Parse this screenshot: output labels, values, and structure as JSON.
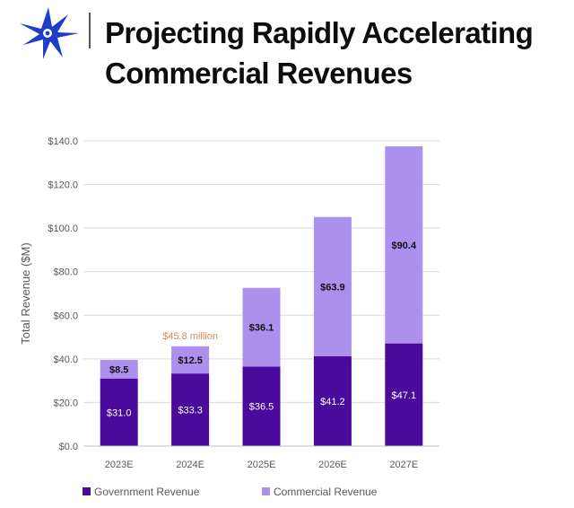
{
  "header": {
    "title_line1": "Projecting Rapidly Accelerating",
    "title_line2": "Commercial Revenues",
    "logo_icon": "compass-star-icon"
  },
  "colors": {
    "government": "#4a0a9c",
    "commercial": "#ab90ee",
    "annotation": "#d08a55",
    "grid": "#d9d9d9",
    "logo_blue": "#1e3ec8"
  },
  "chart_data": {
    "type": "bar",
    "stacked": true,
    "ylabel": "Total Revenue ($M)",
    "xlabel": "",
    "ylim": [
      0,
      140
    ],
    "yticks": [
      0,
      20,
      40,
      60,
      80,
      100,
      120,
      140
    ],
    "ytick_labels": [
      "$0.0",
      "$20.0",
      "$40.0",
      "$60.0",
      "$80.0",
      "$100.0",
      "$120.0",
      "$140.0"
    ],
    "categories": [
      "2023E",
      "2024E",
      "2025E",
      "2026E",
      "2027E"
    ],
    "series": [
      {
        "name": "Government Revenue",
        "values": [
          31.0,
          33.3,
          36.5,
          41.2,
          47.1
        ],
        "labels": [
          "$31.0",
          "$33.3",
          "$36.5",
          "$41.2",
          "$47.1"
        ]
      },
      {
        "name": "Commercial Revenue",
        "values": [
          8.5,
          12.5,
          36.1,
          63.9,
          90.4
        ],
        "labels": [
          "$8.5",
          "$12.5",
          "$36.1",
          "$63.9",
          "$90.4"
        ]
      }
    ],
    "annotation": {
      "category": "2024E",
      "text": "$45.8 million"
    },
    "legend_position": "bottom",
    "grid": true
  }
}
